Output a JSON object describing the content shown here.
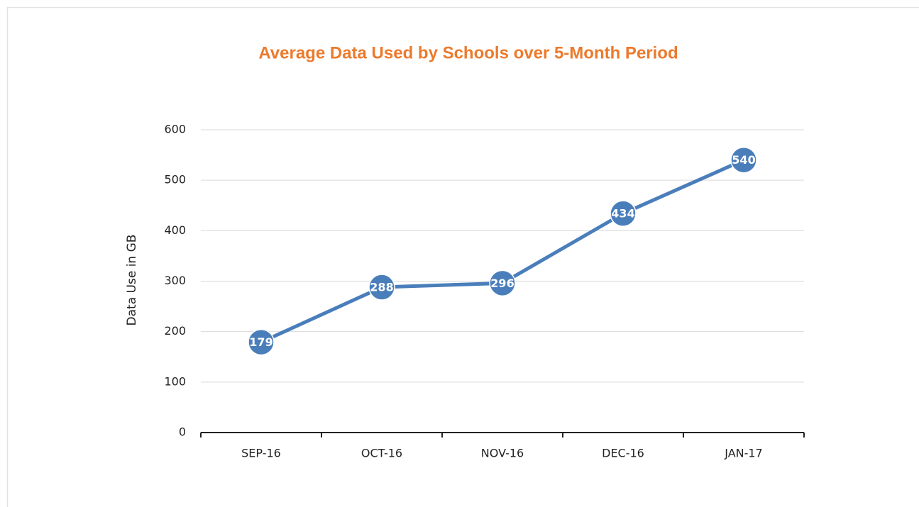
{
  "chart_data": {
    "type": "line",
    "title": "Average Data Used by Schools over 5-Month Period",
    "y_label": "Data Use in GB",
    "categories": [
      "SEP-16",
      "OCT-16",
      "NOV-16",
      "DEC-16",
      "JAN-17"
    ],
    "values": [
      179,
      288,
      296,
      434,
      540
    ],
    "color": "#4a7ebb",
    "ylim": [
      0,
      600
    ],
    "yticks": [
      0,
      100,
      200,
      300,
      400,
      500,
      600
    ],
    "grid": true
  }
}
